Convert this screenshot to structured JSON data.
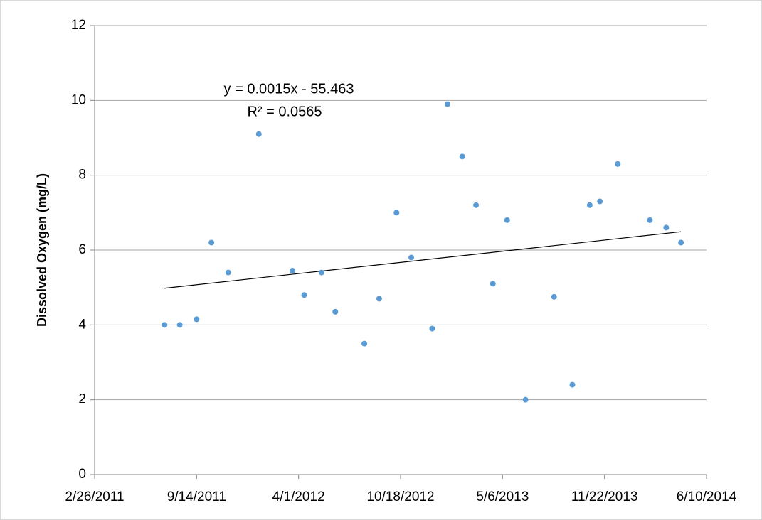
{
  "chart_data": {
    "type": "scatter",
    "y_label": "Dissolved Oxygen (mg/L)",
    "annotations": [
      "y = 0.0015x - 55.463",
      "R² = 0.0565"
    ],
    "x": [
      40737,
      40767,
      40800,
      40829,
      40862,
      40922,
      40988,
      41011,
      41045,
      41072,
      41129,
      41158,
      41192,
      41221,
      41262,
      41292,
      41321,
      41348,
      41381,
      41409,
      41445,
      41501,
      41537,
      41571,
      41591,
      41626,
      41689,
      41721,
      41750
    ],
    "series": [
      {
        "name": "Dissolved Oxygen",
        "color": "#5b9bd5",
        "values": [
          4.0,
          4.0,
          4.15,
          6.2,
          5.4,
          9.1,
          5.45,
          4.8,
          5.4,
          4.35,
          3.5,
          4.7,
          7.0,
          5.8,
          3.9,
          9.9,
          8.5,
          7.2,
          5.1,
          6.8,
          2.0,
          4.75,
          2.4,
          7.2,
          7.3,
          8.3,
          6.8,
          6.6,
          6.2
        ]
      }
    ],
    "trendline": {
      "color": "#000000",
      "x": [
        40737,
        41750
      ],
      "values": [
        4.98,
        6.49
      ]
    },
    "xlim": [
      40600,
      41800
    ],
    "xticks": [
      {
        "value": 40600,
        "label": "2/26/2011"
      },
      {
        "value": 40800,
        "label": "9/14/2011"
      },
      {
        "value": 41000,
        "label": "4/1/2012"
      },
      {
        "value": 41200,
        "label": "10/18/2012"
      },
      {
        "value": 41400,
        "label": "5/6/2013"
      },
      {
        "value": 41600,
        "label": "11/22/2013"
      },
      {
        "value": 41800,
        "label": "6/10/2014"
      }
    ],
    "ylim": [
      0,
      12
    ],
    "yticks": [
      0,
      2,
      4,
      6,
      8,
      10,
      12
    ],
    "grid": true
  }
}
